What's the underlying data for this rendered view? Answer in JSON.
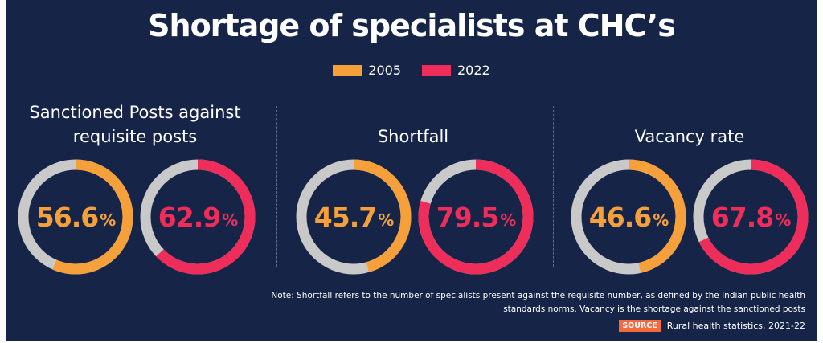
{
  "title": "Shortage of specialists at CHC’s",
  "legend": [
    {
      "label": "2005",
      "color": "#f5a03a"
    },
    {
      "label": "2022",
      "color": "#ee2d5a"
    }
  ],
  "chart_data": {
    "type": "pie",
    "title": "Shortage of specialists at CHC’s",
    "series_names": [
      "2005",
      "2022"
    ],
    "groups": [
      {
        "title_lines": [
          "Sanctioned Posts against",
          "requisite posts"
        ],
        "values": [
          56.6,
          62.9
        ],
        "labels": [
          "56.6",
          "62.9"
        ]
      },
      {
        "title_lines": [
          "Shortfall"
        ],
        "values": [
          45.7,
          79.5
        ],
        "labels": [
          "45.7",
          "79.5"
        ]
      },
      {
        "title_lines": [
          "Vacancy rate"
        ],
        "values": [
          46.6,
          67.8
        ],
        "labels": [
          "46.6",
          "67.8"
        ]
      }
    ],
    "unit": "%"
  },
  "colors": {
    "track": "#c9c9c9",
    "s2005": "#f5a03a",
    "s2022": "#ee2d5a",
    "background": "#152447"
  },
  "note": {
    "line1": "Note: Shortfall refers to the number of specialists present against the requisite number, as defined by the Indian public health",
    "line2": "standards norms. Vacancy is the shortage against the sanctioned posts"
  },
  "source": {
    "tag": "SOURCE",
    "text": "Rural health statistics, 2021-22"
  }
}
